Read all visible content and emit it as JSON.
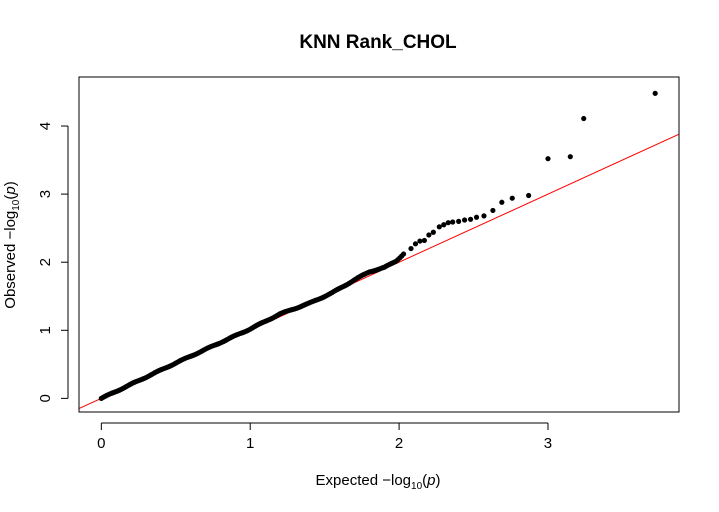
{
  "chart_data": {
    "type": "scatter",
    "title": "KNN Rank_CHOL",
    "xlabel": {
      "prefix": "Expected  −log",
      "subscript": "10",
      "suffix_open": "(",
      "variable": "p",
      "suffix_close": ")"
    },
    "ylabel": {
      "prefix": "Observed  −log",
      "subscript": "10",
      "suffix_open": "(",
      "variable": "p",
      "suffix_close": ")"
    },
    "xlim": [
      -0.15,
      3.88
    ],
    "ylim": [
      -0.2,
      4.72
    ],
    "x_ticks": [
      0,
      1,
      2,
      3
    ],
    "y_ticks": [
      0,
      1,
      2,
      3,
      4
    ],
    "reference_line": {
      "slope": 1,
      "intercept": 0,
      "color": "#ff0000"
    },
    "point_color": "#000000",
    "grid": false,
    "legend": "none",
    "curve_points": [
      [
        0.0,
        0.0
      ],
      [
        0.5,
        0.52
      ],
      [
        1.0,
        1.02
      ],
      [
        1.2,
        1.24
      ],
      [
        1.4,
        1.4
      ],
      [
        1.55,
        1.55
      ],
      [
        1.7,
        1.74
      ],
      [
        1.8,
        1.86
      ],
      [
        1.9,
        1.92
      ],
      [
        1.98,
        2.02
      ],
      [
        2.03,
        2.12
      ]
    ],
    "points": [
      [
        2.08,
        2.2
      ],
      [
        2.11,
        2.27
      ],
      [
        2.14,
        2.31
      ],
      [
        2.17,
        2.32
      ],
      [
        2.2,
        2.4
      ],
      [
        2.23,
        2.44
      ],
      [
        2.27,
        2.52
      ],
      [
        2.3,
        2.55
      ],
      [
        2.33,
        2.58
      ],
      [
        2.36,
        2.59
      ],
      [
        2.4,
        2.6
      ],
      [
        2.44,
        2.62
      ],
      [
        2.48,
        2.63
      ],
      [
        2.52,
        2.66
      ],
      [
        2.57,
        2.68
      ],
      [
        2.63,
        2.76
      ],
      [
        2.69,
        2.88
      ],
      [
        2.76,
        2.94
      ],
      [
        2.87,
        2.98
      ],
      [
        3.0,
        3.52
      ],
      [
        3.15,
        3.55
      ],
      [
        3.24,
        4.11
      ],
      [
        3.72,
        4.48
      ]
    ]
  }
}
